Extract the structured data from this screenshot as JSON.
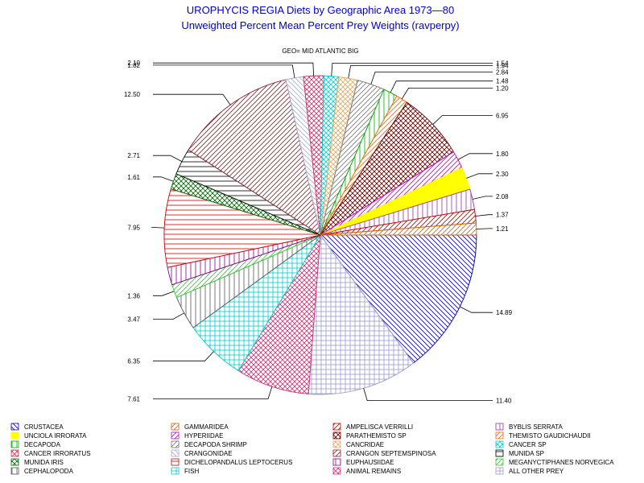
{
  "chart_data": {
    "type": "pie",
    "title": "UROPHYCIS REGIA Diets by Geographic Area 1973—80",
    "subtitle": "Unweighted Percent Mean Percent Prey  Weights (ravperpy)",
    "geo_label": "GEO= MID ATLANTIC BIG",
    "slices": [
      {
        "label": "CRUSTACEA",
        "value": 14.89,
        "color": "#0000aa",
        "pattern": "diag-down",
        "value_text": "14.89"
      },
      {
        "label": "ALL OTHER PREY",
        "value": 11.4,
        "color": "#9999cc",
        "pattern": "grid",
        "value_text": "11.40"
      },
      {
        "label": "ANIMAL REMAINS",
        "value": 7.61,
        "color": "#cc3377",
        "pattern": "crosshatch",
        "value_text": "7.61"
      },
      {
        "label": "FISH",
        "value": 6.35,
        "color": "#00cccc",
        "pattern": "grid",
        "value_text": "6.35"
      },
      {
        "label": "CEPHALOPODA",
        "value": 3.47,
        "color": "#555555",
        "pattern": "vertical",
        "value_text": "3.47"
      },
      {
        "label": "MEGANYCTIPHANES NORVEGICA",
        "value": 1.36,
        "color": "#33cc33",
        "pattern": "diag-up",
        "value_text": "1.36"
      },
      {
        "label": "EUPHAUSIIDAE",
        "value": 1.8,
        "color": "#880088",
        "pattern": "vertical",
        "value_text": ""
      },
      {
        "label": "DICHELOPANDALUS LEPTOCERUS",
        "value": 7.95,
        "color": "#cc0000",
        "pattern": "horizontal",
        "value_text": "7.95"
      },
      {
        "label": "MUNIDA IRIS",
        "value": 1.61,
        "color": "#006600",
        "pattern": "crosshatch",
        "value_text": "1.61"
      },
      {
        "label": "MUNIDA SP",
        "value": 2.71,
        "color": "#000000",
        "pattern": "horizontal",
        "value_text": "2.71"
      },
      {
        "label": "CRANGON SEPTEMSPINOSA",
        "value": 12.5,
        "color": "#882233",
        "pattern": "diag-up",
        "value_text": "12.50"
      },
      {
        "label": "CRANGONIDAE",
        "value": 1.82,
        "color": "#aaaacc",
        "pattern": "diag-down",
        "value_text": "1.82"
      },
      {
        "label": "CANCER IRRORATUS",
        "value": 2.1,
        "color": "#cc3366",
        "pattern": "crosshatch",
        "value_text": "2.10"
      },
      {
        "label": "CANCER SP",
        "value": 1.54,
        "color": "#00cccc",
        "pattern": "crosshatch",
        "value_text": "1.54"
      },
      {
        "label": "CANCRIDAE",
        "value": 1.94,
        "color": "#ddaa66",
        "pattern": "crosshatch",
        "value_text": "1.94"
      },
      {
        "label": "DECAPODA SHRIMP",
        "value": 2.84,
        "color": "#777777",
        "pattern": "diag-up",
        "value_text": "2.84"
      },
      {
        "label": "DECAPODA",
        "value": 1.48,
        "color": "#00aa00",
        "pattern": "vertical",
        "value_text": "1.48"
      },
      {
        "label": "THEMISTO GAUDICHAUDII",
        "value": 1.2,
        "color": "#ff6600",
        "pattern": "diag-up",
        "value_text": "1.20"
      },
      {
        "label": "PARATHEMISTO SP",
        "value": 6.95,
        "color": "#660000",
        "pattern": "crosshatch",
        "value_text": "6.95"
      },
      {
        "label": "HYPERIIDAE",
        "value": 1.8,
        "color": "#cc00cc",
        "pattern": "diag-up",
        "value_text": "1.80"
      },
      {
        "label": "UNCIOLA IRRORATA",
        "value": 2.3,
        "color": "#ffff00",
        "pattern": "solid",
        "value_text": "2.30"
      },
      {
        "label": "BYBLIS SERRATA",
        "value": 2.08,
        "color": "#993399",
        "pattern": "vertical",
        "value_text": "2.08"
      },
      {
        "label": "AMPELISCA VERRILLI",
        "value": 1.37,
        "color": "#cc0000",
        "pattern": "diag-up",
        "value_text": "1.37"
      },
      {
        "label": "GAMMARIDEA",
        "value": 1.21,
        "color": "#cc6600",
        "pattern": "diag-up",
        "value_text": "1.21"
      }
    ],
    "legend_order": [
      "CRUSTACEA",
      "GAMMARIDEA",
      "AMPELISCA VERRILLI",
      "BYBLIS SERRATA",
      "UNCIOLA IRRORATA",
      "HYPERIIDAE",
      "PARATHEMISTO SP",
      "THEMISTO GAUDICHAUDII",
      "DECAPODA",
      "DECAPODA SHRIMP",
      "CANCRIDAE",
      "CANCER SP",
      "CANCER IRRORATUS",
      "CRANGONIDAE",
      "CRANGON SEPTEMSPINOSA",
      "MUNIDA SP",
      "MUNIDA IRIS",
      "DICHELOPANDALUS LEPTOCERUS",
      "EUPHAUSIIDAE",
      "MEGANYCTIPHANES NORVEGICA",
      "CEPHALOPODA",
      "FISH",
      "ANIMAL REMAINS",
      "ALL OTHER PREY"
    ],
    "legend_placement": "bottom"
  }
}
